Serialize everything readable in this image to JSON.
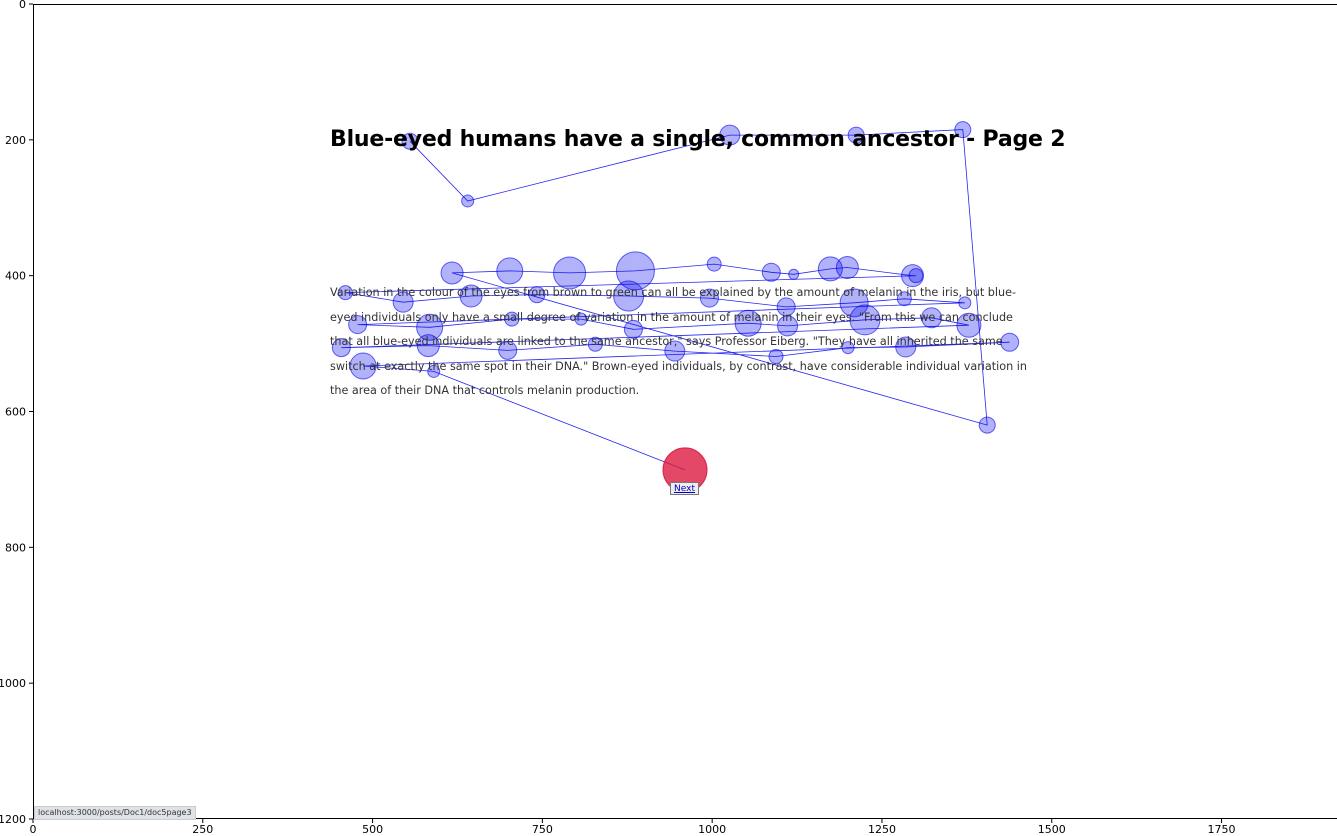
{
  "page": {
    "heading": "Blue-eyed humans have a single, common ancestor - Page 2",
    "paragraph": "Variation in the colour of the eyes from brown to green can all be explained by the amount of melanin in the iris, but blue-eyed individuals only have a small degree of variation in the amount of melanin in their eyes. \"From this we can conclude that all blue-eyed individuals are linked to the same ancestor,\" says Professor Eiberg. \"They have all inherited the same switch at exactly the same spot in their DNA.\" Brown-eyed individuals, by contrast, have considerable individual variation in the area of their DNA that controls melanin production.",
    "next_button": "Next",
    "status_url": "localhost:3000/posts/Doc1/doc5page3"
  },
  "chart_data": {
    "type": "scatter",
    "title": "",
    "xlabel": "",
    "ylabel": "",
    "xlim": [
      0,
      1920
    ],
    "ylim": [
      1200,
      0
    ],
    "x_ticks": [
      0,
      250,
      500,
      750,
      1000,
      1250,
      1500,
      1750
    ],
    "y_ticks": [
      0,
      200,
      400,
      600,
      800,
      1000,
      1200
    ],
    "grid": false,
    "colors": {
      "fixation": "#0000ee",
      "scanpath": "#0000ee",
      "last_fixation": "#dc143c"
    },
    "fixations": [
      {
        "x": 555,
        "y": 202,
        "size": 8
      },
      {
        "x": 640,
        "y": 290,
        "size": 6
      },
      {
        "x": 1026,
        "y": 193,
        "size": 10
      },
      {
        "x": 1212,
        "y": 193,
        "size": 8
      },
      {
        "x": 1369,
        "y": 185,
        "size": 8
      },
      {
        "x": 1405,
        "y": 620,
        "size": 8
      },
      {
        "x": 617,
        "y": 396,
        "size": 11
      },
      {
        "x": 702,
        "y": 393,
        "size": 13
      },
      {
        "x": 790,
        "y": 396,
        "size": 16
      },
      {
        "x": 887,
        "y": 393,
        "size": 19
      },
      {
        "x": 1003,
        "y": 383,
        "size": 7
      },
      {
        "x": 1087,
        "y": 395,
        "size": 9
      },
      {
        "x": 1120,
        "y": 398,
        "size": 5
      },
      {
        "x": 1174,
        "y": 390,
        "size": 12
      },
      {
        "x": 1199,
        "y": 388,
        "size": 11
      },
      {
        "x": 1295,
        "y": 400,
        "size": 11
      },
      {
        "x": 1300,
        "y": 400,
        "size": 7
      },
      {
        "x": 460,
        "y": 425,
        "size": 7
      },
      {
        "x": 545,
        "y": 439,
        "size": 10
      },
      {
        "x": 645,
        "y": 430,
        "size": 11
      },
      {
        "x": 742,
        "y": 428,
        "size": 8
      },
      {
        "x": 877,
        "y": 430,
        "size": 15
      },
      {
        "x": 996,
        "y": 433,
        "size": 9
      },
      {
        "x": 1109,
        "y": 446,
        "size": 9
      },
      {
        "x": 1209,
        "y": 440,
        "size": 14
      },
      {
        "x": 1283,
        "y": 434,
        "size": 7
      },
      {
        "x": 1372,
        "y": 440,
        "size": 6
      },
      {
        "x": 478,
        "y": 472,
        "size": 9
      },
      {
        "x": 584,
        "y": 476,
        "size": 13
      },
      {
        "x": 705,
        "y": 464,
        "size": 7
      },
      {
        "x": 807,
        "y": 464,
        "size": 6
      },
      {
        "x": 884,
        "y": 479,
        "size": 9
      },
      {
        "x": 1053,
        "y": 470,
        "size": 13
      },
      {
        "x": 1111,
        "y": 474,
        "size": 10
      },
      {
        "x": 1225,
        "y": 465,
        "size": 15
      },
      {
        "x": 1323,
        "y": 462,
        "size": 10
      },
      {
        "x": 1378,
        "y": 473,
        "size": 12
      },
      {
        "x": 454,
        "y": 506,
        "size": 9
      },
      {
        "x": 582,
        "y": 503,
        "size": 11
      },
      {
        "x": 699,
        "y": 510,
        "size": 9
      },
      {
        "x": 828,
        "y": 501,
        "size": 7
      },
      {
        "x": 945,
        "y": 511,
        "size": 10
      },
      {
        "x": 1094,
        "y": 519,
        "size": 7
      },
      {
        "x": 1200,
        "y": 506,
        "size": 6
      },
      {
        "x": 1285,
        "y": 505,
        "size": 10
      },
      {
        "x": 1438,
        "y": 498,
        "size": 9
      },
      {
        "x": 486,
        "y": 533,
        "size": 13
      },
      {
        "x": 590,
        "y": 541,
        "size": 6
      },
      {
        "x": 960,
        "y": 686,
        "size": 22,
        "last": true
      }
    ]
  }
}
